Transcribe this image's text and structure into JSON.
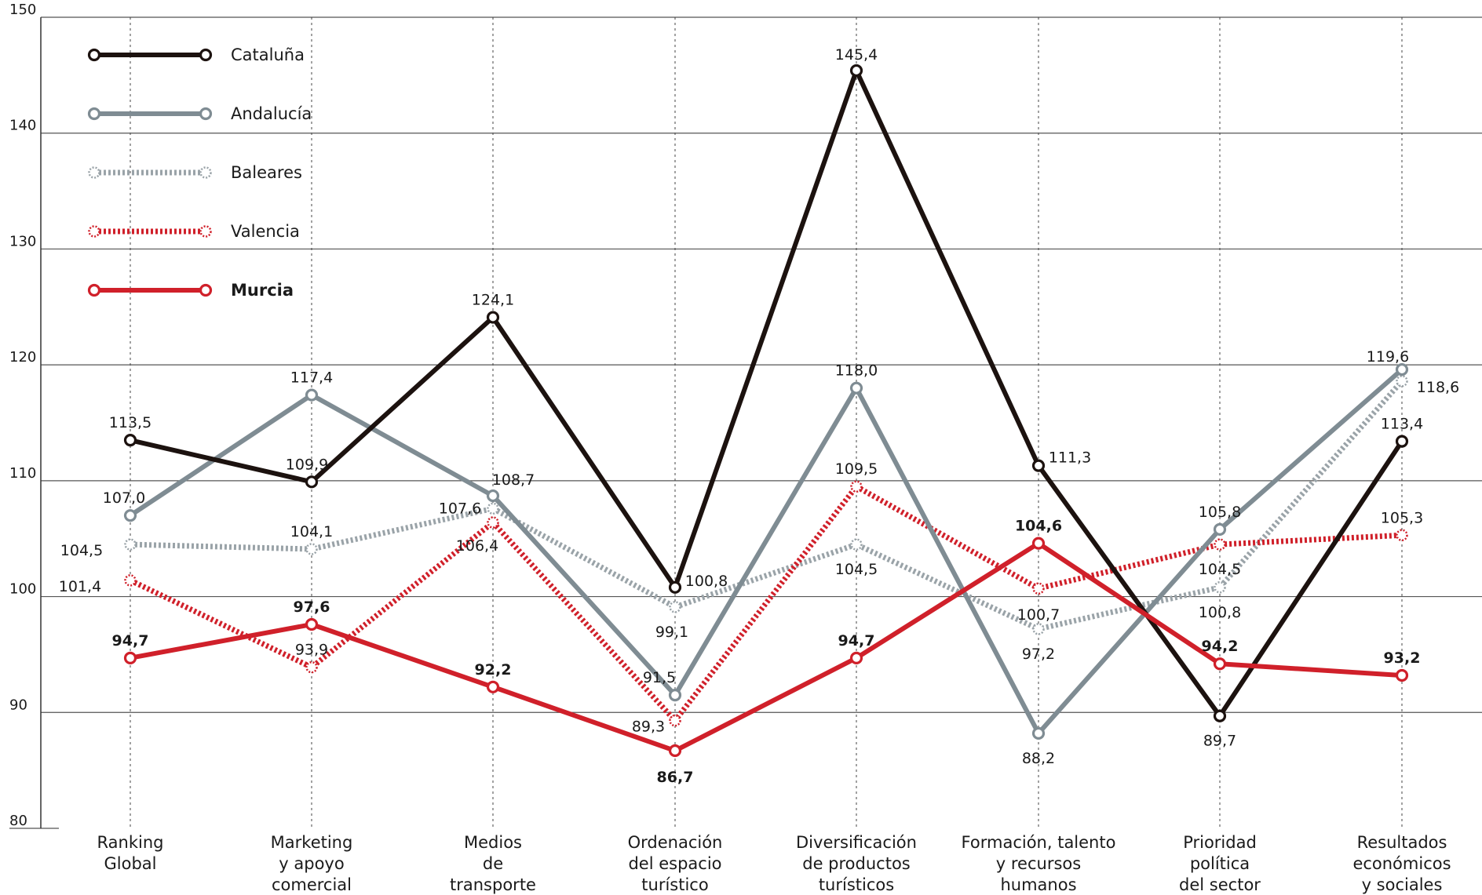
{
  "chart_data": {
    "type": "line",
    "title": "",
    "xlabel": "",
    "ylabel": "",
    "ylim": [
      80,
      150
    ],
    "yticks": [
      80,
      90,
      100,
      110,
      120,
      130,
      140,
      150
    ],
    "grid": "horizontal solid, vertical dotted",
    "legend_position": "top-left",
    "categories": [
      [
        "Ranking",
        "Global"
      ],
      [
        "Marketing",
        "y apoyo",
        "comercial"
      ],
      [
        "Medios",
        "de",
        "transporte"
      ],
      [
        "Ordenación",
        "del espacio",
        "turístico"
      ],
      [
        "Diversificación",
        "de productos",
        "turísticos"
      ],
      [
        "Formación, talento",
        "y recursos",
        "humanos"
      ],
      [
        "Prioridad",
        "política",
        "del sector"
      ],
      [
        "Resultados",
        "económicos",
        "y sociales"
      ]
    ],
    "series": [
      {
        "name": "Cataluña",
        "color": "#1c120f",
        "style": "solid",
        "bold": false,
        "values": [
          113.5,
          109.9,
          124.1,
          100.8,
          145.4,
          111.3,
          89.7,
          113.4
        ],
        "labels": [
          "113,5",
          "109,9",
          "124,1",
          "100,8",
          "145,4",
          "111,3",
          "89,7",
          "113,4"
        ]
      },
      {
        "name": "Andalucía",
        "color": "#7f8c93",
        "style": "solid",
        "bold": false,
        "values": [
          107.0,
          117.4,
          108.7,
          91.5,
          118.0,
          88.2,
          105.8,
          119.6
        ],
        "labels": [
          "107,0",
          "117,4",
          "108,7",
          "91,5",
          "118,0",
          "88,2",
          "105,8",
          "119,6"
        ]
      },
      {
        "name": "Baleares",
        "color": "#9aa3a8",
        "style": "dotted",
        "bold": false,
        "values": [
          104.5,
          104.1,
          107.6,
          99.1,
          104.5,
          97.2,
          100.8,
          118.6
        ],
        "labels": [
          "104,5",
          "104,1",
          "107,6",
          "99,1",
          "104,5",
          "97,2",
          "100,8",
          "118,6"
        ]
      },
      {
        "name": "Valencia",
        "color": "#d0202a",
        "style": "dotted",
        "bold": false,
        "values": [
          101.4,
          93.9,
          106.4,
          89.3,
          109.5,
          100.7,
          104.5,
          105.3
        ],
        "labels": [
          "101,4",
          "93,9",
          "106,4",
          "89,3",
          "109,5",
          "100,7",
          "104,5",
          "105,3"
        ]
      },
      {
        "name": "Murcia",
        "color": "#d0202a",
        "style": "solid",
        "bold": true,
        "values": [
          94.7,
          97.6,
          92.2,
          86.7,
          94.7,
          104.6,
          94.2,
          93.2
        ],
        "labels": [
          "94,7",
          "97,6",
          "92,2",
          "86,7",
          "94,7",
          "104,6",
          "94,2",
          "93,2"
        ]
      }
    ]
  }
}
